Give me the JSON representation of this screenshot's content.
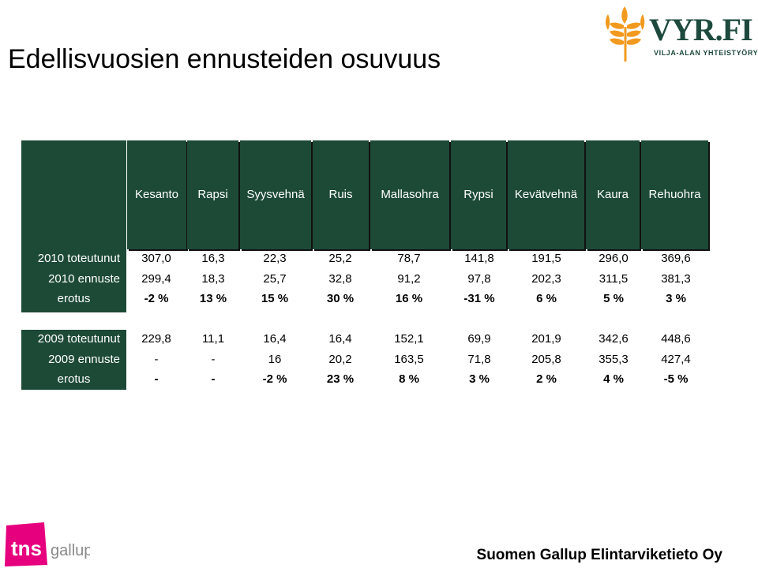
{
  "title": "Edellisvuosien ennusteiden osuvuus",
  "logo": {
    "brand": "VYR.FI",
    "tagline": "VILJA-ALAN YHTEISTYÖRYHMÄ"
  },
  "table": {
    "columns": [
      "Kesanto",
      "Rapsi",
      "Syysvehnä",
      "Ruis",
      "Mallasohra",
      "Rypsi",
      "Kevätvehnä",
      "Kaura",
      "Rehuohra"
    ],
    "rows": [
      {
        "label": "2010 toteutunut",
        "values": [
          "307,0",
          "16,3",
          "22,3",
          "25,2",
          "78,7",
          "141,8",
          "191,5",
          "296,0",
          "369,6"
        ],
        "bold": false
      },
      {
        "label": "2010 ennuste",
        "values": [
          "299,4",
          "18,3",
          "25,7",
          "32,8",
          "91,2",
          "97,8",
          "202,3",
          "311,5",
          "381,3"
        ],
        "bold": false
      },
      {
        "label": "erotus",
        "values": [
          "-2 %",
          "13 %",
          "15 %",
          "30 %",
          "16 %",
          "-31 %",
          "6 %",
          "5 %",
          "3 %"
        ],
        "bold": true
      },
      {
        "label": "2009 toteutunut",
        "values": [
          "229,8",
          "11,1",
          "16,4",
          "16,4",
          "152,1",
          "69,9",
          "201,9",
          "342,6",
          "448,6"
        ],
        "bold": false
      },
      {
        "label": "2009 ennuste",
        "values": [
          "-",
          "-",
          "16",
          "20,2",
          "163,5",
          "71,8",
          "205,8",
          "355,3",
          "427,4"
        ],
        "bold": false
      },
      {
        "label": "erotus",
        "values": [
          "-",
          "-",
          "-2 %",
          "23 %",
          "8 %",
          "3 %",
          "2 %",
          "4 %",
          "-5 %"
        ],
        "bold": true
      }
    ]
  },
  "footer": {
    "tns_text": "tns",
    "gallup_text": "gallup",
    "company": "Suomen Gallup Elintarviketieto Oy"
  },
  "colors": {
    "header_green": "#1d4a37",
    "logo_orange": "#f29a1f",
    "tns_pink": "#e6007e"
  }
}
